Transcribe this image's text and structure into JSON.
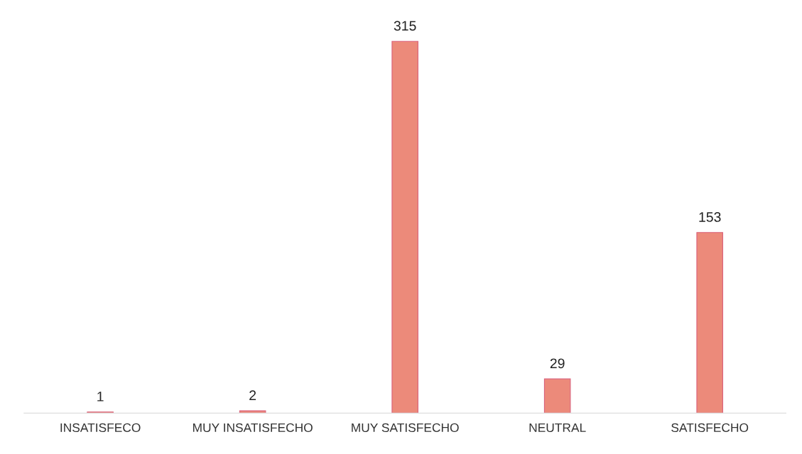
{
  "chart_data": {
    "type": "bar",
    "categories": [
      "INSATISFECO",
      "MUY INSATISFECHO",
      "MUY SATISFECHO",
      "NEUTRAL",
      "SATISFECHO"
    ],
    "values": [
      1,
      2,
      315,
      29,
      153
    ],
    "color": "#ec8a7a",
    "data_labels": true,
    "grid": false,
    "legend": false
  }
}
